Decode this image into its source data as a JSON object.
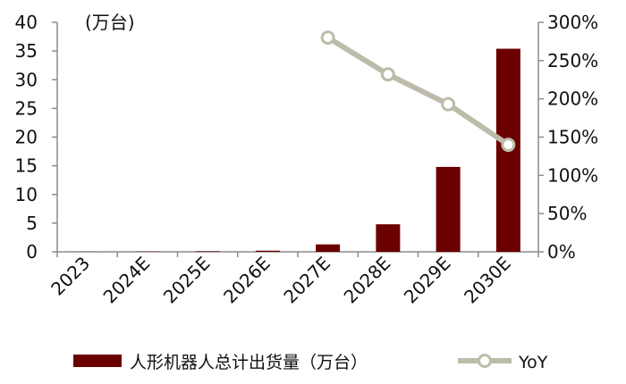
{
  "chart_data": {
    "type": "bar",
    "title": "",
    "xlabel": "",
    "ylabel": "",
    "unit_label": "(万台)",
    "categories": [
      "2023",
      "2024E",
      "2025E",
      "2026E",
      "2027E",
      "2028E",
      "2029E",
      "2030E"
    ],
    "series": [
      {
        "name": "人形机器人总计出货量（万台）",
        "type": "bar",
        "axis": "left",
        "color": "#6b0000",
        "values": [
          0.02,
          0.05,
          0.1,
          0.2,
          1.3,
          4.8,
          14.8,
          35.4
        ]
      },
      {
        "name": "YoY",
        "type": "line",
        "axis": "right",
        "color": "#bdbcaa",
        "values": [
          null,
          null,
          null,
          null,
          2.8,
          2.32,
          1.93,
          1.4
        ]
      }
    ],
    "ylim": [
      0,
      40
    ],
    "yticks": [
      0,
      5,
      10,
      15,
      20,
      25,
      30,
      35,
      40
    ],
    "y2lim": [
      0,
      3
    ],
    "y2ticks": [
      0,
      0.5,
      1,
      1.5,
      2,
      2.5,
      3
    ],
    "y2tick_labels": [
      "0%",
      "50%",
      "100%",
      "150%",
      "200%",
      "250%",
      "300%"
    ],
    "grid": false,
    "legend": "bottom"
  }
}
